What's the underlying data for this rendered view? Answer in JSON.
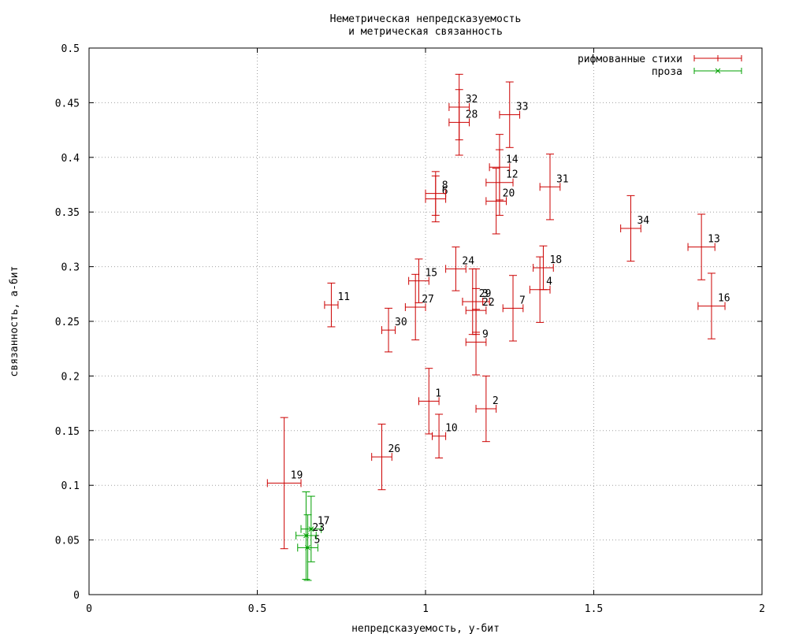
{
  "chart_data": {
    "type": "scatter",
    "title": [
      "Неметрическая непредсказуемость",
      "и метрическая связанность"
    ],
    "xlabel": "непредсказуемость, у-бит",
    "ylabel": "связанность, а-бит",
    "xlim": [
      0,
      2
    ],
    "ylim": [
      0,
      0.5
    ],
    "x_ticks": [
      0,
      0.5,
      1,
      1.5,
      2
    ],
    "x_tick_labels": [
      "0",
      "0.5",
      "1",
      "1.5",
      "2"
    ],
    "y_ticks": [
      0,
      0.05,
      0.1,
      0.15,
      0.2,
      0.25,
      0.3,
      0.35,
      0.4,
      0.45,
      0.5
    ],
    "y_tick_labels": [
      "0",
      "0.05",
      "0.1",
      "0.15",
      "0.2",
      "0.25",
      "0.3",
      "0.35",
      "0.4",
      "0.45",
      "0.5"
    ],
    "grid": true,
    "legend_position": "top-right",
    "series": [
      {
        "name": "рифмованные стихи",
        "color": "#cc0000",
        "marker": "plus",
        "points": [
          {
            "label": "1",
            "x": 1.01,
            "y": 0.177,
            "xerr": 0.03,
            "yerr": 0.03
          },
          {
            "label": "2",
            "x": 1.18,
            "y": 0.17,
            "xerr": 0.03,
            "yerr": 0.03
          },
          {
            "label": "3",
            "x": 1.15,
            "y": 0.268,
            "xerr": 0.04,
            "yerr": 0.03
          },
          {
            "label": "4",
            "x": 1.34,
            "y": 0.279,
            "xerr": 0.03,
            "yerr": 0.03
          },
          {
            "label": "6",
            "x": 1.03,
            "y": 0.362,
            "xerr": 0.03,
            "yerr": 0.021
          },
          {
            "label": "7",
            "x": 1.26,
            "y": 0.262,
            "xerr": 0.03,
            "yerr": 0.03
          },
          {
            "label": "8",
            "x": 1.03,
            "y": 0.367,
            "xerr": 0.03,
            "yerr": 0.02
          },
          {
            "label": "9",
            "x": 1.15,
            "y": 0.231,
            "xerr": 0.03,
            "yerr": 0.03
          },
          {
            "label": "10",
            "x": 1.04,
            "y": 0.145,
            "xerr": 0.02,
            "yerr": 0.02
          },
          {
            "label": "11",
            "x": 0.72,
            "y": 0.265,
            "xerr": 0.02,
            "yerr": 0.02
          },
          {
            "label": "12",
            "x": 1.22,
            "y": 0.377,
            "xerr": 0.04,
            "yerr": 0.03
          },
          {
            "label": "13",
            "x": 1.82,
            "y": 0.318,
            "xerr": 0.04,
            "yerr": 0.03
          },
          {
            "label": "14",
            "x": 1.22,
            "y": 0.391,
            "xerr": 0.03,
            "yerr": 0.03
          },
          {
            "label": "15",
            "x": 0.98,
            "y": 0.287,
            "xerr": 0.03,
            "yerr": 0.02
          },
          {
            "label": "16",
            "x": 1.85,
            "y": 0.264,
            "xerr": 0.04,
            "yerr": 0.03
          },
          {
            "label": "18",
            "x": 1.35,
            "y": 0.299,
            "xerr": 0.03,
            "yerr": 0.02
          },
          {
            "label": "19",
            "x": 0.58,
            "y": 0.102,
            "xerr": 0.05,
            "yerr": 0.06
          },
          {
            "label": "20",
            "x": 1.21,
            "y": 0.36,
            "xerr": 0.03,
            "yerr": 0.03
          },
          {
            "label": "22",
            "x": 1.15,
            "y": 0.26,
            "xerr": 0.03,
            "yerr": 0.02
          },
          {
            "label": "24",
            "x": 1.09,
            "y": 0.298,
            "xerr": 0.03,
            "yerr": 0.02
          },
          {
            "label": "26",
            "x": 0.87,
            "y": 0.126,
            "xerr": 0.03,
            "yerr": 0.03
          },
          {
            "label": "27",
            "x": 0.97,
            "y": 0.263,
            "xerr": 0.03,
            "yerr": 0.03
          },
          {
            "label": "28",
            "x": 1.1,
            "y": 0.432,
            "xerr": 0.03,
            "yerr": 0.03
          },
          {
            "label": "29",
            "x": 1.14,
            "y": 0.268,
            "xerr": 0.03,
            "yerr": 0.03
          },
          {
            "label": "30",
            "x": 0.89,
            "y": 0.242,
            "xerr": 0.02,
            "yerr": 0.02
          },
          {
            "label": "31",
            "x": 1.37,
            "y": 0.373,
            "xerr": 0.03,
            "yerr": 0.03
          },
          {
            "label": "32",
            "x": 1.1,
            "y": 0.446,
            "xerr": 0.03,
            "yerr": 0.03
          },
          {
            "label": "33",
            "x": 1.25,
            "y": 0.439,
            "xerr": 0.03,
            "yerr": 0.03
          },
          {
            "label": "34",
            "x": 1.61,
            "y": 0.335,
            "xerr": 0.03,
            "yerr": 0.03
          }
        ]
      },
      {
        "name": "проза",
        "color": "#00a000",
        "marker": "cross",
        "points": [
          {
            "label": "5",
            "x": 0.65,
            "y": 0.043,
            "xerr": 0.03,
            "yerr": 0.03
          },
          {
            "label": "17",
            "x": 0.66,
            "y": 0.06,
            "xerr": 0.03,
            "yerr": 0.03
          },
          {
            "label": "23",
            "x": 0.645,
            "y": 0.054,
            "xerr": 0.03,
            "yerr": 0.04
          }
        ]
      }
    ]
  }
}
